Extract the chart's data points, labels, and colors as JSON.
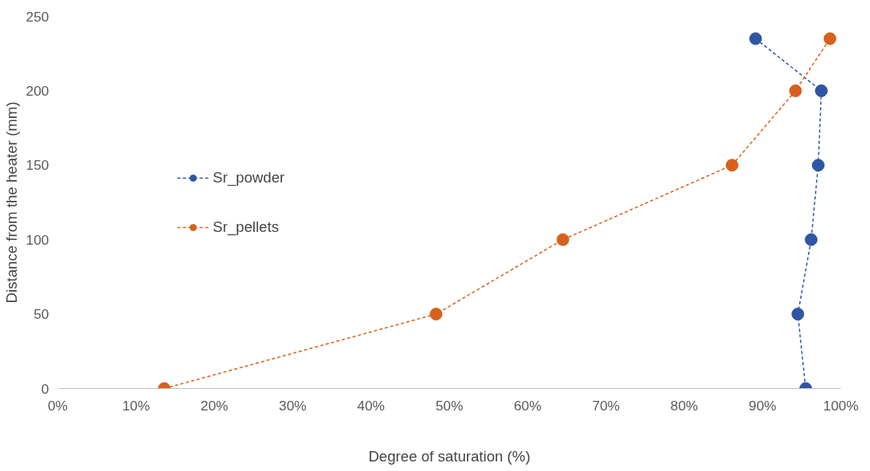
{
  "chart_data": {
    "type": "line",
    "xlabel": "Degree of saturation (%)",
    "ylabel": "Distance from the heater (mm)",
    "series": [
      {
        "name": "Sr_powder",
        "color": "#2f55a4",
        "x": [
          89.1,
          97.5,
          97.1,
          96.2,
          94.5,
          95.5
        ],
        "values": [
          235,
          200,
          150,
          100,
          50,
          0
        ]
      },
      {
        "name": "Sr_pellets",
        "color": "#d9601c",
        "x": [
          13.6,
          48.3,
          64.5,
          86.1,
          94.2,
          98.6
        ],
        "values": [
          0,
          50,
          100,
          150,
          200,
          235
        ]
      }
    ],
    "xlim": [
      0,
      100
    ],
    "ylim": [
      0,
      250
    ],
    "xticks": [
      {
        "value": 0,
        "label": "0%"
      },
      {
        "value": 10,
        "label": "10%"
      },
      {
        "value": 20,
        "label": "20%"
      },
      {
        "value": 30,
        "label": "30%"
      },
      {
        "value": 40,
        "label": "40%"
      },
      {
        "value": 50,
        "label": "50%"
      },
      {
        "value": 60,
        "label": "60%"
      },
      {
        "value": 70,
        "label": "70%"
      },
      {
        "value": 80,
        "label": "80%"
      },
      {
        "value": 90,
        "label": "90%"
      },
      {
        "value": 100,
        "label": "100%"
      }
    ],
    "yticks": [
      0,
      50,
      100,
      150,
      200,
      250
    ],
    "grid": false,
    "legend": "left",
    "marker": "circle",
    "line_style": "dashed"
  }
}
